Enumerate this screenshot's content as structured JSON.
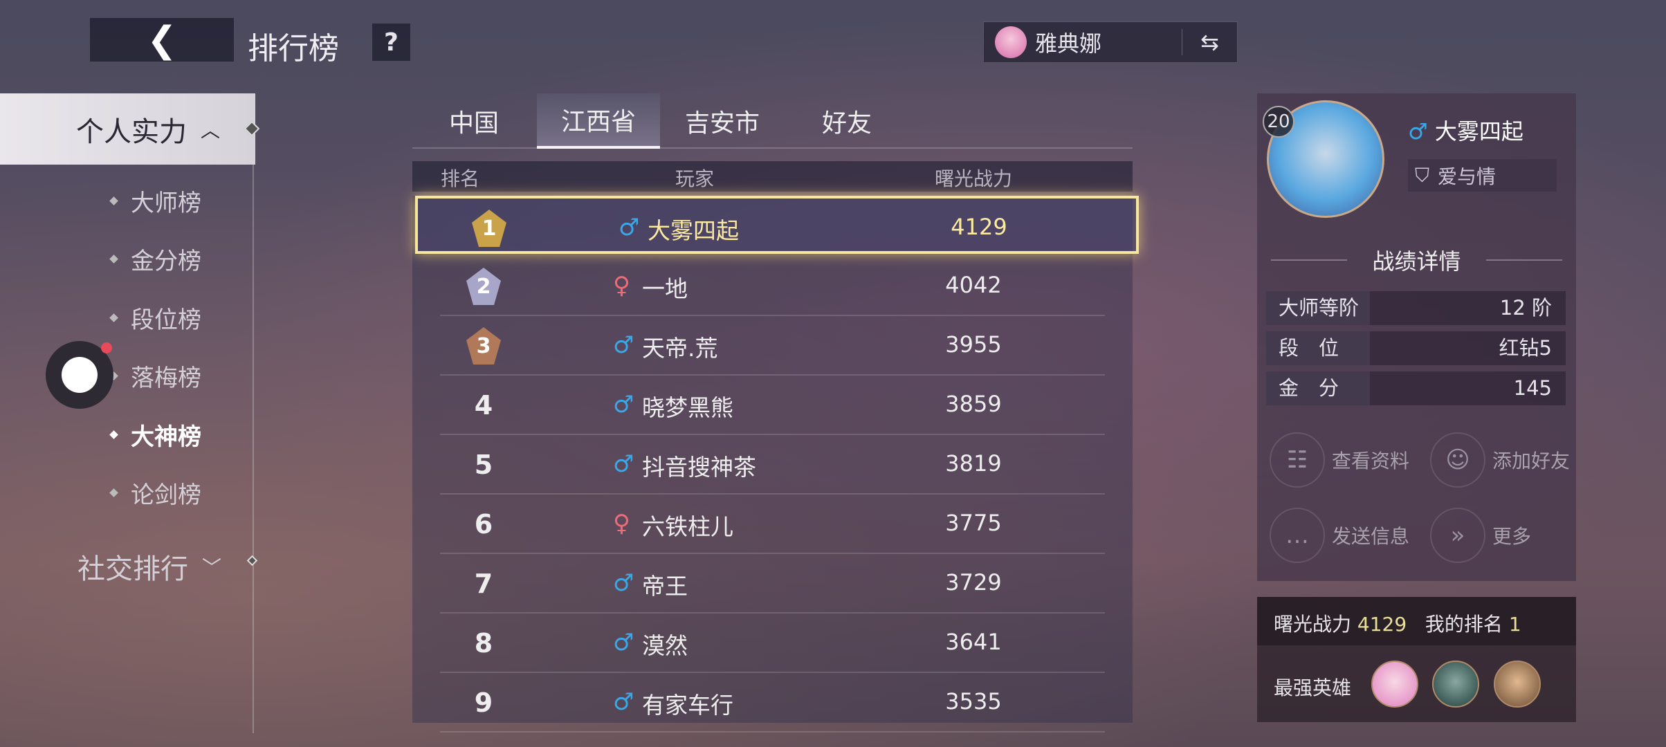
{
  "header": {
    "back_icon": "chevron-left-icon",
    "title": "排行榜",
    "help_label": "?",
    "account_name": "雅典娜",
    "switch_icon": "swap-arrows-icon"
  },
  "sidebar": {
    "category1": {
      "label": "个人实力",
      "expanded": true
    },
    "items": [
      {
        "label": "大师榜"
      },
      {
        "label": "金分榜"
      },
      {
        "label": "段位榜"
      },
      {
        "label": "落梅榜"
      },
      {
        "label": "大神榜",
        "active": true
      },
      {
        "label": "论剑榜"
      }
    ],
    "category2": {
      "label": "社交排行",
      "expanded": false
    }
  },
  "tabs": [
    {
      "label": "中国"
    },
    {
      "label": "江西省",
      "active": true
    },
    {
      "label": "吉安市"
    },
    {
      "label": "好友"
    }
  ],
  "table": {
    "headers": [
      "排名",
      "玩家",
      "曙光战力"
    ],
    "rows": [
      {
        "rank": "1",
        "gender": "♂",
        "name": "大雾四起",
        "power": "4129",
        "highlight": true
      },
      {
        "rank": "2",
        "gender": "♀",
        "name": "一地",
        "power": "4042"
      },
      {
        "rank": "3",
        "gender": "♂",
        "name": "天帝.荒",
        "power": "3955"
      },
      {
        "rank": "4",
        "gender": "♂",
        "name": "晓梦黑熊",
        "power": "3859"
      },
      {
        "rank": "5",
        "gender": "♂",
        "name": "抖音搜神茶",
        "power": "3819"
      },
      {
        "rank": "6",
        "gender": "♀",
        "name": "六铁柱儿",
        "power": "3775"
      },
      {
        "rank": "7",
        "gender": "♂",
        "name": "帝王",
        "power": "3729"
      },
      {
        "rank": "8",
        "gender": "♂",
        "name": "漠然",
        "power": "3641"
      },
      {
        "rank": "9",
        "gender": "♂",
        "name": "有家车行",
        "power": "3535"
      }
    ]
  },
  "profile": {
    "level": "20",
    "gender": "♂",
    "name": "大雾四起",
    "title": "爱与情",
    "section_title": "战绩详情",
    "stats": [
      {
        "key": "大师等阶",
        "value": "12 阶"
      },
      {
        "key": "段　位",
        "value": "红钻5"
      },
      {
        "key": "金　分",
        "value": "145"
      }
    ],
    "actions": [
      {
        "label": "查看资料",
        "icon": "profile-search-icon"
      },
      {
        "label": "添加好友",
        "icon": "add-friend-icon"
      },
      {
        "label": "发送信息",
        "icon": "message-icon"
      },
      {
        "label": "更多",
        "icon": "double-chevron-right-icon"
      }
    ]
  },
  "summary": {
    "power_label": "曙光战力",
    "power": "4129",
    "rank_label": "我的排名",
    "rank": "1",
    "heroes_label": "最强英雄"
  },
  "colors": {
    "gold": "#f6e6a0",
    "male": "#3aa8e8",
    "female": "#f06a78",
    "medal1": "#c9a24a",
    "medal2": "#a8a6c8",
    "medal3": "#b07a5a"
  }
}
